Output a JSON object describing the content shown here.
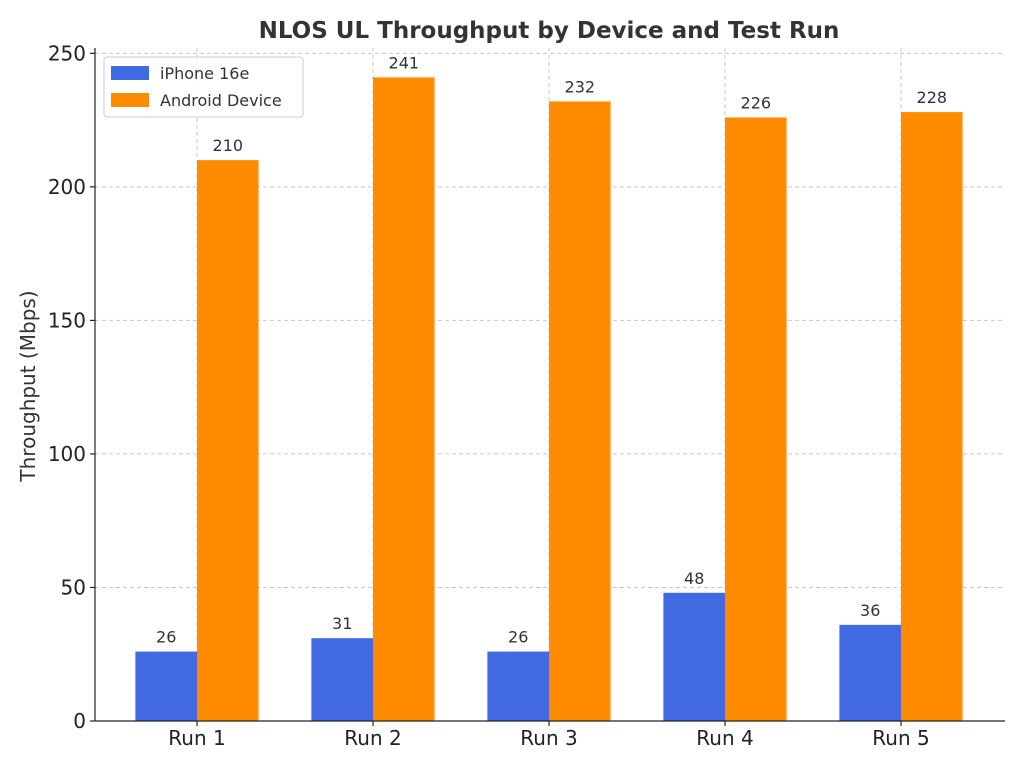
{
  "chart_data": {
    "type": "bar",
    "title": "NLOS UL Throughput by Device and Test Run",
    "xlabel": "",
    "ylabel": "Throughput (Mbps)",
    "categories": [
      "Run 1",
      "Run 2",
      "Run 3",
      "Run 4",
      "Run 5"
    ],
    "series": [
      {
        "name": "iPhone 16e",
        "color": "#4169E1",
        "values": [
          26,
          31,
          26,
          48,
          36
        ]
      },
      {
        "name": "Android Device",
        "color": "#FF8C00",
        "values": [
          210,
          241,
          232,
          226,
          228
        ]
      }
    ],
    "ylim": [
      0,
      252
    ],
    "yticks": [
      0,
      50,
      100,
      150,
      200,
      250
    ],
    "grid": true,
    "legend_position": "top-left"
  }
}
